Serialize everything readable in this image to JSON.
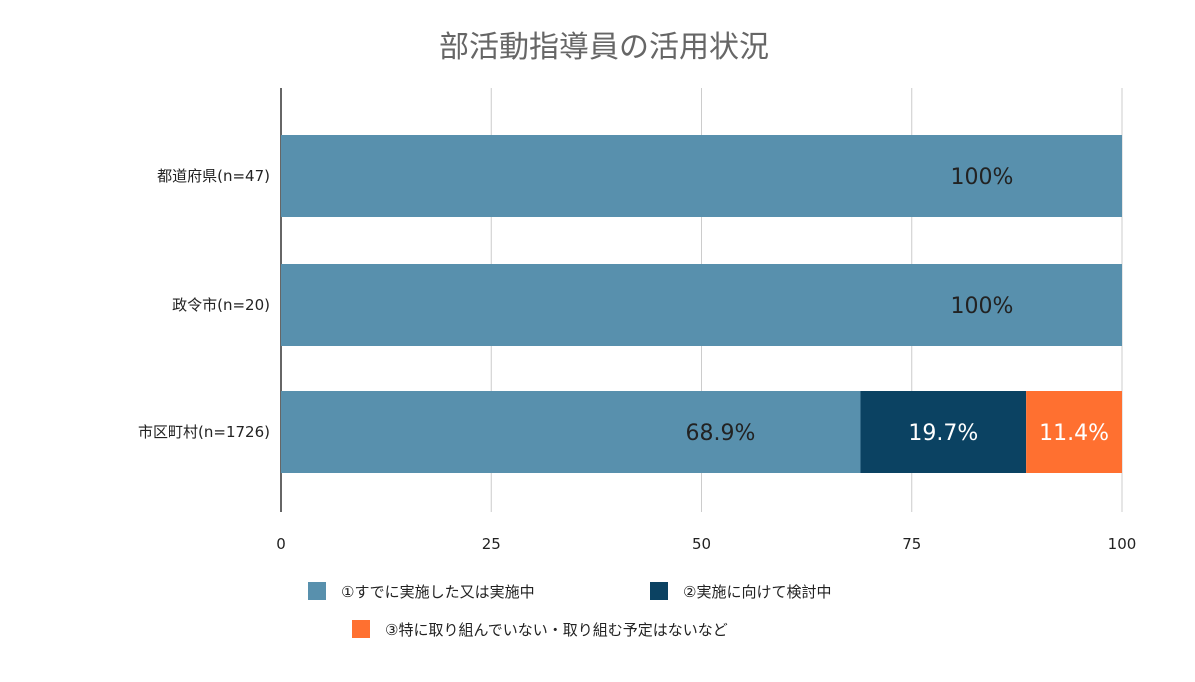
{
  "chart_data": {
    "type": "bar",
    "orientation": "horizontal",
    "stacked": true,
    "title": "部活動指導員の活用状況",
    "categories": [
      "都道府県(n=47)",
      "政令市(n=20)",
      "市区町村(n=1726)"
    ],
    "series": [
      {
        "name": "①すでに実施した又は実施中",
        "color": "#5890ad",
        "values": [
          100,
          100,
          68.9
        ],
        "labels": [
          "100%",
          "100%",
          "68.9%"
        ],
        "label_color": "#222222"
      },
      {
        "name": "②実施に向けて検討中",
        "color": "#0b4262",
        "values": [
          0,
          0,
          19.7
        ],
        "labels": [
          "",
          "",
          "19.7%"
        ],
        "label_color": "#ffffff"
      },
      {
        "name": "③特に取り組んでいない・取り組む予定はないなど",
        "color": "#ff7030",
        "values": [
          0,
          0,
          11.4
        ],
        "labels": [
          "",
          "",
          "11.4%"
        ],
        "label_color": "#ffffff"
      }
    ],
    "xlim": [
      0,
      100
    ],
    "xticks": [
      "0",
      "25",
      "50",
      "75",
      "100"
    ],
    "grid": true,
    "legend_position": "bottom"
  }
}
